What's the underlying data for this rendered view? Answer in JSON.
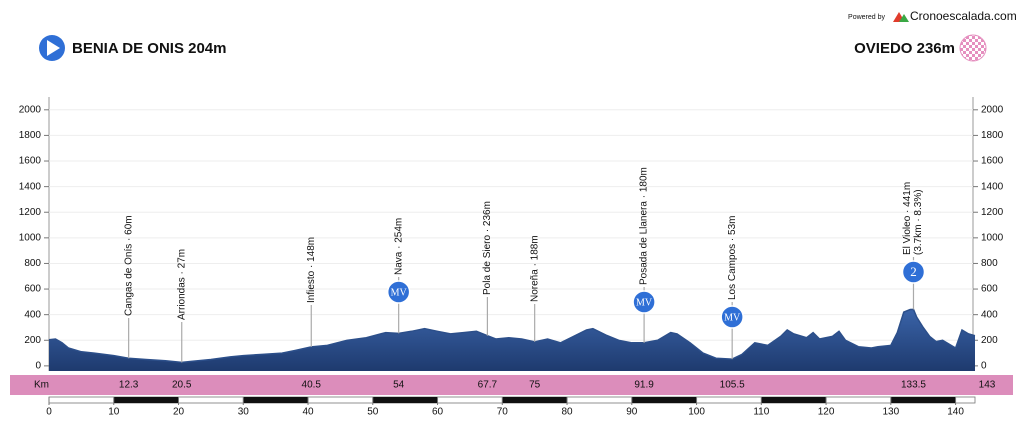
{
  "chart_data": {
    "type": "area",
    "powered_by": "Powered by",
    "brand": "Cronoescalada.com",
    "start_label": "BENIA DE ONIS 204m",
    "finish_label": "OVIEDO 236m",
    "km_label": "Km",
    "color": "#2c4f8a",
    "x": [
      0,
      1,
      2,
      3,
      5,
      7,
      10,
      12.3,
      15,
      18,
      20.5,
      22,
      25,
      28,
      30,
      33,
      36,
      38,
      40.5,
      43,
      46,
      49,
      52,
      54,
      56,
      58,
      60,
      62,
      64,
      66,
      67.7,
      69,
      71,
      73,
      75,
      77,
      79,
      81,
      83,
      84,
      86,
      88,
      90,
      91.9,
      94,
      96,
      97,
      99,
      101,
      103,
      105.5,
      107,
      109,
      111,
      113,
      114,
      115,
      117,
      118,
      119,
      121,
      122,
      123,
      125,
      127,
      128,
      130,
      131,
      132,
      133,
      133.5,
      134,
      135,
      136,
      137,
      138,
      140,
      141,
      142,
      143
    ],
    "values": [
      204,
      210,
      180,
      140,
      110,
      100,
      80,
      60,
      50,
      40,
      27,
      35,
      50,
      70,
      80,
      90,
      100,
      120,
      148,
      160,
      200,
      220,
      260,
      254,
      270,
      290,
      270,
      250,
      260,
      270,
      236,
      210,
      220,
      210,
      188,
      210,
      180,
      230,
      280,
      290,
      240,
      200,
      180,
      180,
      200,
      260,
      250,
      180,
      100,
      60,
      53,
      90,
      180,
      160,
      230,
      280,
      250,
      220,
      260,
      210,
      230,
      270,
      200,
      150,
      140,
      150,
      160,
      260,
      420,
      440,
      441,
      380,
      300,
      230,
      190,
      200,
      140,
      280,
      250,
      236
    ],
    "xlim": [
      0,
      143
    ],
    "xticks": [
      0,
      10,
      20,
      30,
      40,
      50,
      60,
      70,
      80,
      90,
      100,
      110,
      120,
      130,
      140
    ],
    "ylim": [
      -40,
      2100
    ],
    "yticks": [
      0,
      200,
      400,
      600,
      800,
      1000,
      1200,
      1400,
      1600,
      1800,
      2000
    ],
    "grid": true,
    "waypoints": [
      {
        "km": 12.3,
        "label": "Cangas de Onís · 60m"
      },
      {
        "km": 20.5,
        "label": "Arriondas · 27m"
      },
      {
        "km": 40.5,
        "label": "Infiesto · 148m"
      },
      {
        "km": 54,
        "label": "Nava · 254m",
        "badge": "MV"
      },
      {
        "km": 67.7,
        "label": "Pola de Siero · 236m"
      },
      {
        "km": 75,
        "label": "Noreña · 188m"
      },
      {
        "km": 91.9,
        "label": "Posada de Llanera · 180m",
        "badge": "MV"
      },
      {
        "km": 105.5,
        "label": "Los Campos · 53m",
        "badge": "MV"
      },
      {
        "km": 133.5,
        "label": "El Violeo · 441m",
        "sublabel": "(3.7km · 8.3%)",
        "badge": "2"
      }
    ]
  }
}
